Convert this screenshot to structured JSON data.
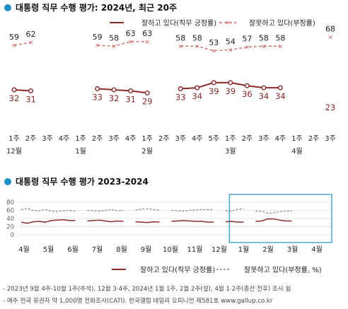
{
  "chart_data": [
    {
      "type": "line",
      "title": "대통령 직무 수행 평가: 2024년, 최근 20주",
      "legend": {
        "placement": "top-right"
      },
      "series": [
        {
          "name": "잘하고 있다(직무 긍정률)",
          "color": "#8b2a2a",
          "values": [
            32,
            31,
            null,
            null,
            null,
            33,
            32,
            31,
            29,
            null,
            33,
            34,
            39,
            39,
            36,
            34,
            34,
            null,
            null,
            23
          ]
        },
        {
          "name": "잘못하고 있다(부정률)",
          "color": "#c86464",
          "values": [
            59,
            62,
            null,
            null,
            null,
            59,
            58,
            63,
            63,
            null,
            58,
            58,
            53,
            54,
            57,
            58,
            58,
            null,
            null,
            68
          ]
        }
      ],
      "x": [
        "1주",
        "2주",
        "3주",
        "4주",
        "1주",
        "2주",
        "3주",
        "4주",
        "1주",
        "2주",
        "3주",
        "4주",
        "5주",
        "1주",
        "2주",
        "3주",
        "4주",
        "1주",
        "2주",
        "3주"
      ],
      "months": [
        {
          "label": "12월",
          "index": 0
        },
        {
          "label": "1월",
          "index": 4
        },
        {
          "label": "2월",
          "index": 8
        },
        {
          "label": "3월",
          "index": 13
        },
        {
          "label": "4월",
          "index": 17
        }
      ]
    },
    {
      "type": "line",
      "title": "대통령 직무 수행 평가 2023-2024",
      "grid": true,
      "ylim": [
        0,
        80
      ],
      "yticks": [
        "0",
        "20",
        "40",
        "60",
        "80"
      ],
      "months": [
        "4월",
        "5월",
        "6월",
        "7월",
        "8월",
        "9월",
        "10월",
        "11월",
        "12월",
        "1월",
        "2월",
        "3월",
        "4월"
      ],
      "highlight": {
        "from_month_index": 8.5,
        "to_month_index": 13
      },
      "legend": {
        "placement": "bottom"
      },
      "series": [
        {
          "name": "잘하고 있다(직무 긍정률)",
          "color": "#8b2a2a",
          "values": [
            31,
            28,
            32,
            33,
            31,
            35,
            36,
            37,
            35,
            35,
            null,
            34,
            35,
            36,
            34,
            32,
            34,
            33,
            null,
            32,
            31,
            30,
            32,
            31,
            null,
            33,
            34,
            35,
            34,
            33,
            33,
            31,
            31,
            null,
            32,
            33,
            31,
            31,
            null,
            33,
            34,
            39,
            39,
            36,
            34,
            34,
            null,
            null,
            23
          ]
        },
        {
          "name": "잘못하고 있다(부정률, %)",
          "color": "#888888",
          "values": [
            62,
            65,
            60,
            59,
            62,
            58,
            57,
            59,
            60,
            58,
            null,
            60,
            59,
            58,
            60,
            62,
            59,
            60,
            null,
            61,
            63,
            64,
            62,
            61,
            null,
            60,
            59,
            58,
            60,
            61,
            62,
            62,
            62,
            null,
            59,
            58,
            63,
            63,
            null,
            58,
            58,
            53,
            54,
            57,
            58,
            58,
            null,
            null,
            68
          ]
        }
      ]
    }
  ],
  "footnotes": [
    "- 2023년 9월 4주-10월 1주(추석), 12월 3·4주, 2024년 1월 1주, 2월 2주(설), 4월 1·2주(총선 전후) 조사 쉼",
    "- 매주 전국 유권자 약 1,000명 전화조사(CATI). 한국갤럽 데일리 오피니언 제581호 www.gallup.co.kr"
  ]
}
